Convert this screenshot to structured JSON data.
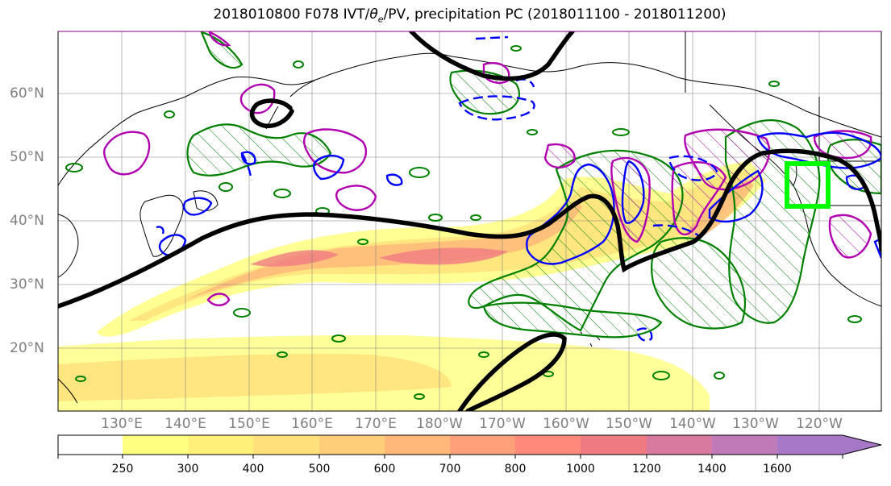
{
  "title": "2018010800 F078 IVT/θe/PV, precipitation PC (2018011100 - 2018011200)",
  "title_parts": {
    "prefix": "2018010800 F078 IVT/",
    "theta": "θ",
    "theta_sub": "e",
    "suffix": "/PV, precipitation PC (2018011100 - 2018011200)"
  },
  "lat_labels": [
    "60°N",
    "50°N",
    "40°N",
    "30°N",
    "20°N"
  ],
  "lon_labels": [
    "130°E",
    "140°E",
    "150°E",
    "160°E",
    "170°E",
    "180°W",
    "170°W",
    "160°W",
    "150°W",
    "140°W",
    "130°W",
    "120°W"
  ],
  "colorbar": {
    "ticks": [
      "250",
      "300",
      "400",
      "500",
      "600",
      "700",
      "800",
      "1000",
      "1200",
      "1400",
      "1600"
    ],
    "colors": [
      "#ffffff",
      "#ffff80",
      "#fff07a",
      "#ffe07a",
      "#ffce78",
      "#ffb87a",
      "#ffa07a",
      "#ff8a7c",
      "#f07a82",
      "#d87aa0",
      "#c07ab8",
      "#a878c8"
    ]
  },
  "legend_colors": {
    "ivt_fill": "#ffa07a",
    "theta_e_contour": "#000000",
    "pv_magenta": "#b000b0",
    "pv_blue": "#0000ff",
    "precip_green": "#008000",
    "target_box": "#00ff00"
  }
}
